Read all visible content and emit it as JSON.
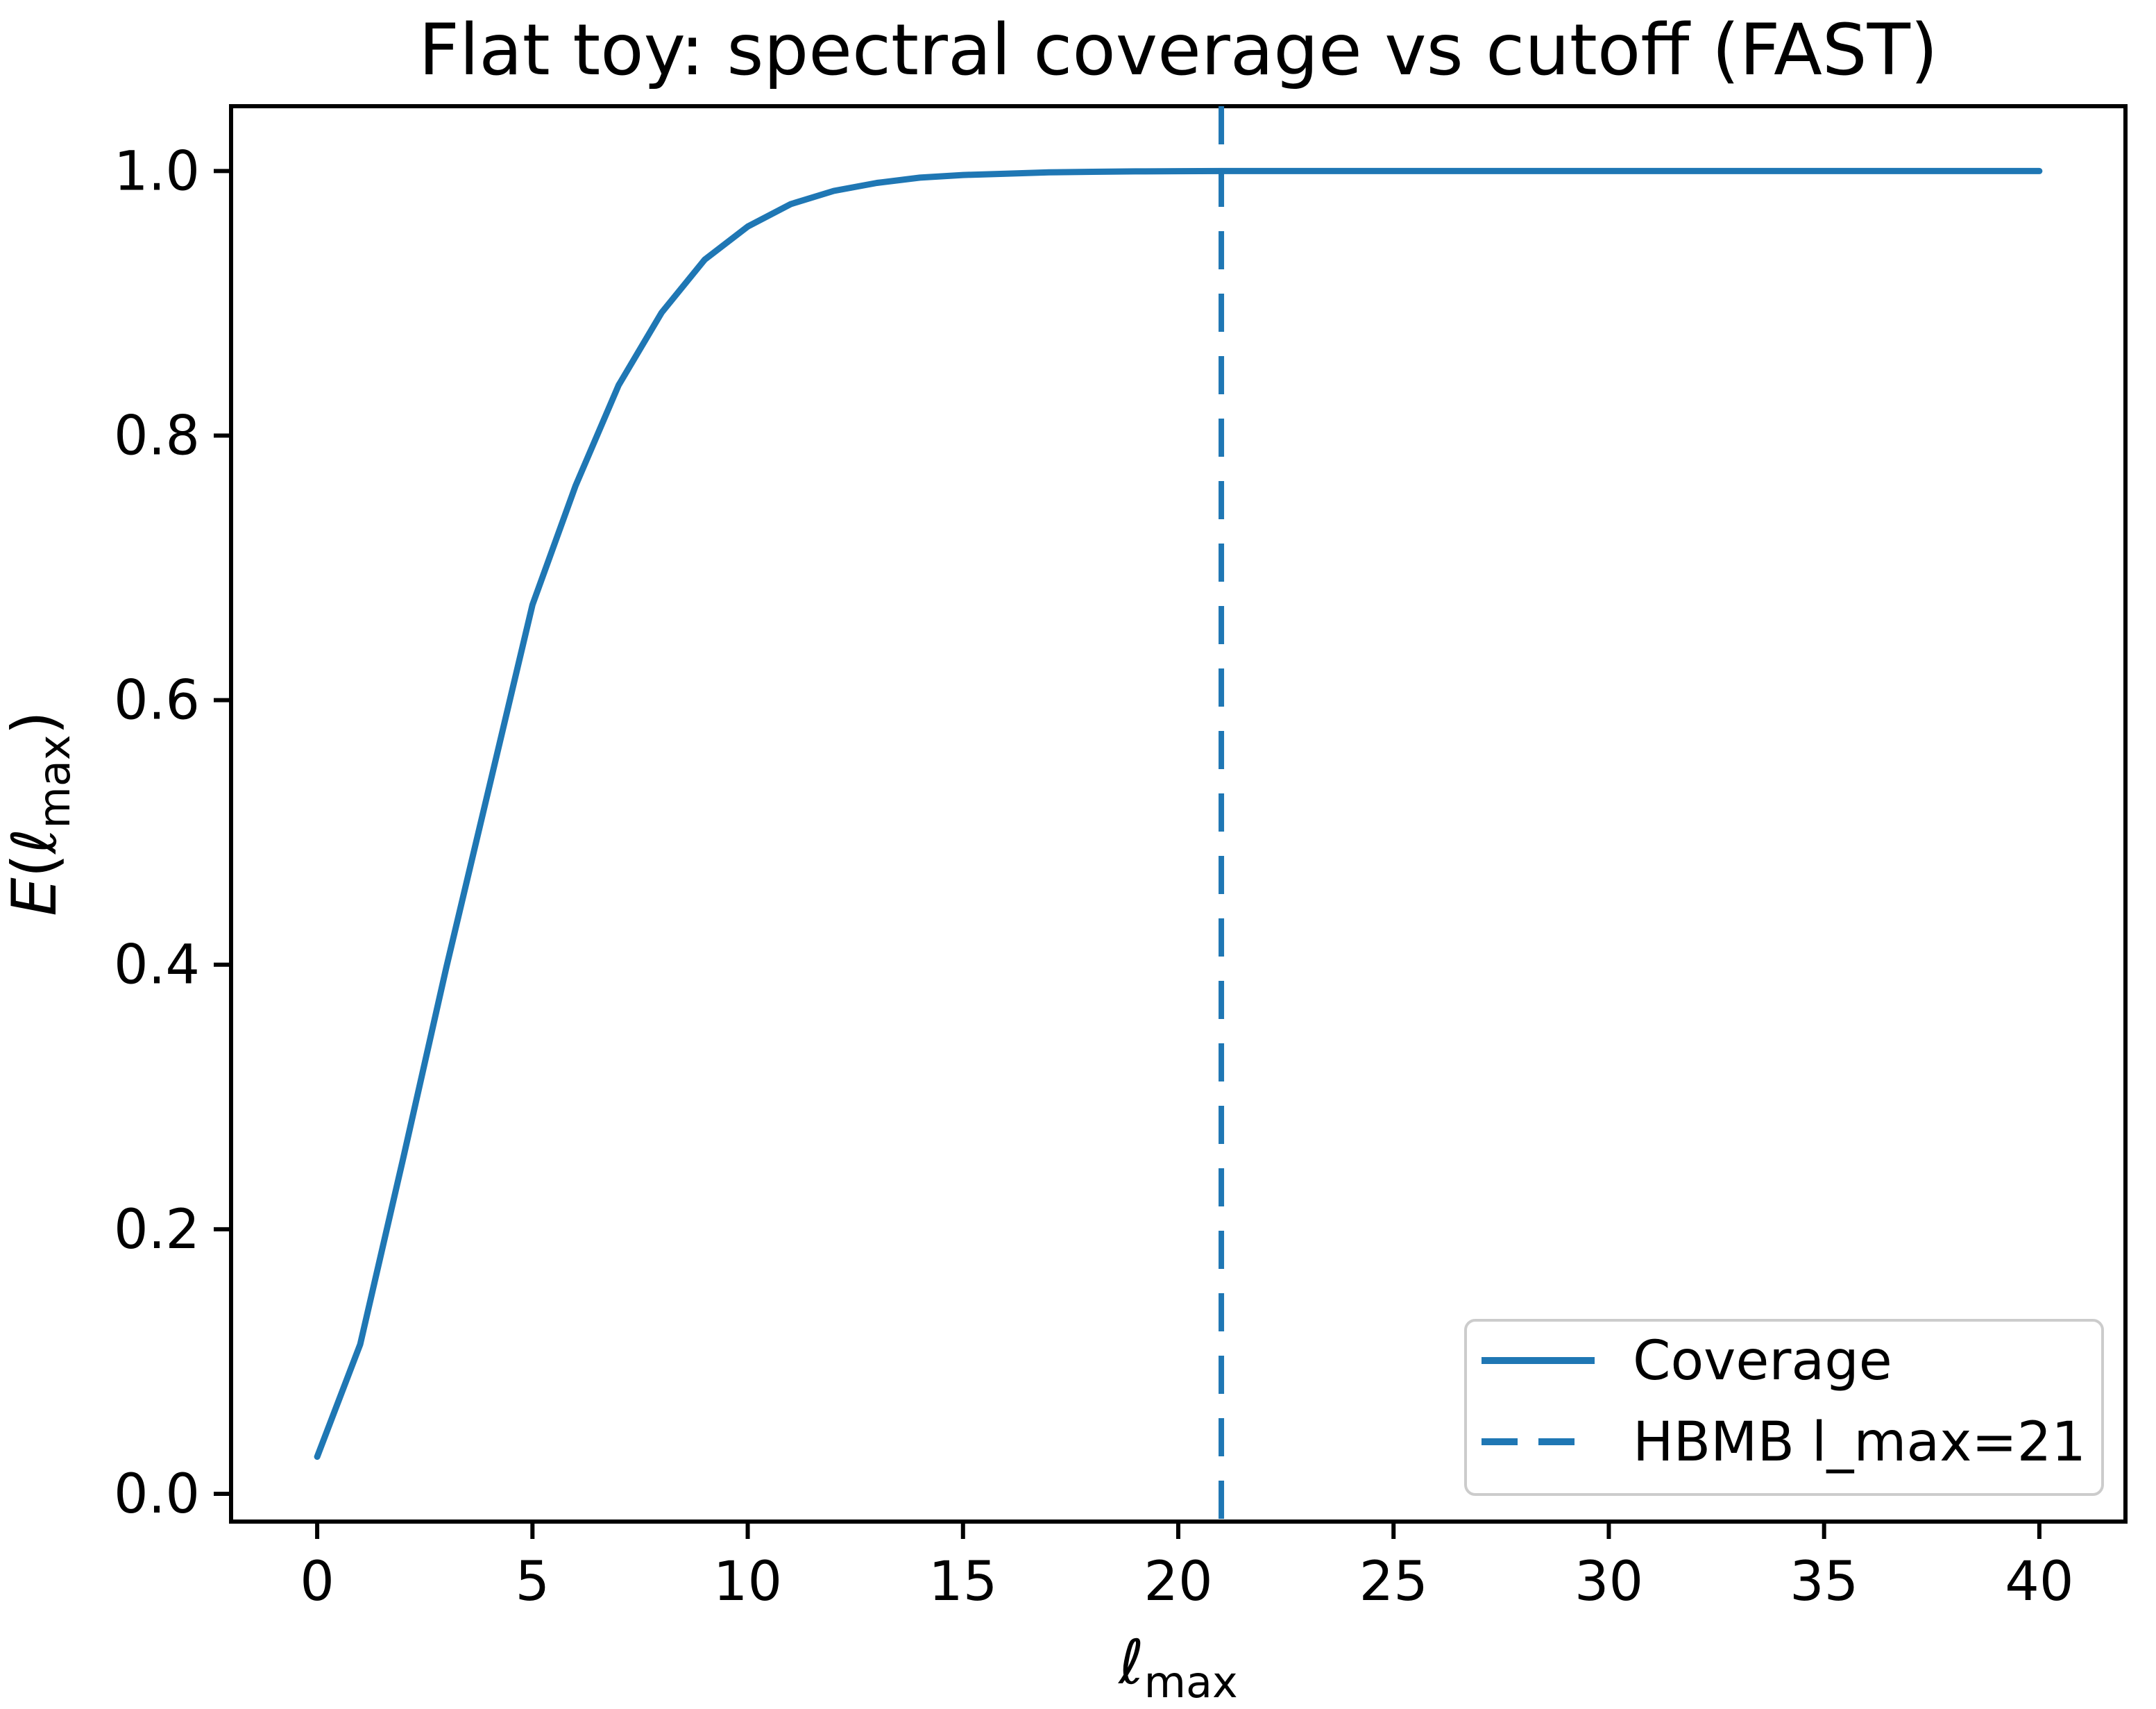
{
  "chart_data": {
    "type": "line",
    "title": "Flat toy: spectral coverage vs cutoff (FAST)",
    "xlabel": "ℓ_max",
    "ylabel": "E(ℓ_max)",
    "xlabel_parts": {
      "base": "ℓ",
      "sub": "max"
    },
    "ylabel_parts": {
      "italic_prefix": "E",
      "open": "(",
      "base": "ℓ",
      "sub": "max",
      "close": ")"
    },
    "xlim": [
      -2,
      42
    ],
    "ylim": [
      -0.021,
      1.049
    ],
    "xticks": [
      0,
      5,
      10,
      15,
      20,
      25,
      30,
      35,
      40
    ],
    "ytick_labels": [
      "0.0",
      "0.2",
      "0.4",
      "0.6",
      "0.8",
      "1.0"
    ],
    "ytick_values": [
      0.0,
      0.2,
      0.4,
      0.6,
      0.8,
      1.0
    ],
    "grid": false,
    "x": [
      0,
      1,
      2,
      3,
      4,
      5,
      6,
      7,
      8,
      9,
      10,
      11,
      12,
      13,
      14,
      15,
      16,
      17,
      18,
      19,
      20,
      21,
      22,
      23,
      24,
      25,
      26,
      27,
      28,
      29,
      30,
      31,
      32,
      33,
      34,
      35,
      36,
      37,
      38,
      39,
      40
    ],
    "series": [
      {
        "name": "Coverage",
        "style": "solid",
        "color": "#1f77b4",
        "values": [
          0.028,
          0.113,
          0.254,
          0.398,
          0.535,
          0.672,
          0.762,
          0.838,
          0.893,
          0.933,
          0.958,
          0.975,
          0.985,
          0.991,
          0.995,
          0.997,
          0.998,
          0.999,
          0.9994,
          0.9997,
          0.9999,
          1.0,
          1.0,
          1.0,
          1.0,
          1.0,
          1.0,
          1.0,
          1.0,
          1.0,
          1.0,
          1.0,
          1.0,
          1.0,
          1.0,
          1.0,
          1.0,
          1.0,
          1.0,
          1.0,
          1.0
        ]
      }
    ],
    "vline": {
      "x": 21,
      "style": "dashed",
      "color": "#1f77b4",
      "label": "HBMB l_max=21"
    },
    "legend": {
      "position": "lower right",
      "frame_color": "#cccccc",
      "entries": [
        {
          "label": "Coverage",
          "style": "solid"
        },
        {
          "label": "HBMB l_max=21",
          "style": "dashed"
        }
      ]
    },
    "colors": {
      "line": "#1f77b4",
      "axes": "#000000",
      "background": "#ffffff"
    }
  }
}
